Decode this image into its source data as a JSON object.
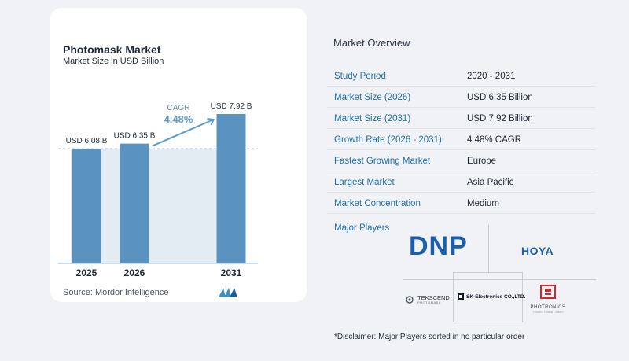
{
  "chart_data": {
    "type": "bar",
    "title": "Photomask Market",
    "subtitle": "Market Size in USD Billion",
    "categories": [
      "2025",
      "2026",
      "2031"
    ],
    "values": [
      6.08,
      6.35,
      7.92
    ],
    "value_labels": [
      "USD 6.08 B",
      "USD 6.35 B",
      "USD 7.92 B"
    ],
    "cagr_label": "CAGR",
    "cagr_value": "4.48%",
    "source": "Source:  Mordor Intelligence",
    "colors": {
      "bar": "#5b93c0",
      "bar_light": "#e4ecf3",
      "arrow": "#5b9dd0",
      "baseline": "#8fb7d6"
    }
  },
  "overview": {
    "title": "Market Overview",
    "rows": [
      {
        "label": "Study Period",
        "value": "2020 - 2031"
      },
      {
        "label": "Market Size (2026)",
        "value": "USD 6.35 Billion"
      },
      {
        "label": "Market Size (2031)",
        "value": "USD 7.92 Billion"
      },
      {
        "label": "Growth Rate (2026 - 2031)",
        "value": "4.48% CAGR"
      },
      {
        "label": "Fastest Growing Market",
        "value": "Europe"
      },
      {
        "label": "Largest Market",
        "value": "Asia Pacific"
      },
      {
        "label": "Market Concentration",
        "value": "Medium"
      }
    ]
  },
  "players": {
    "label": "Major Players",
    "dnp": "DNP",
    "hoya": "HOYA",
    "tekscend": "TEKSCEND",
    "tekscend_sub": "PHOTOMASK",
    "sk": "SK-Electronics CO.,LTD.",
    "photronics": "PHOTRONICS",
    "photronics_sub": "Trusted Global Leader"
  },
  "disclaimer": "*Disclaimer: Major Players sorted in no particular order"
}
